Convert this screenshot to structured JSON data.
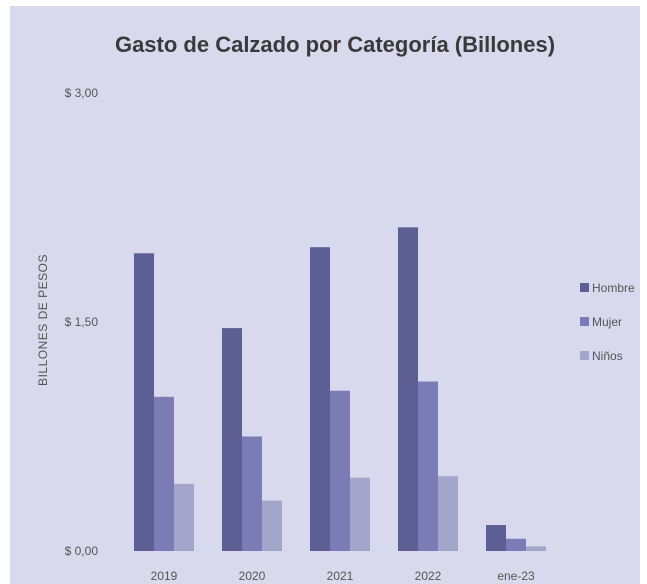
{
  "chart_data": {
    "type": "bar",
    "title": "Gasto de Calzado por Categoría (Billones)",
    "xlabel": "",
    "ylabel": "BILLONES DE PESOS",
    "categories": [
      "2019",
      "2020",
      "2021",
      "2022",
      "ene-23"
    ],
    "series": [
      {
        "name": "Hombre",
        "color": "#5d5e94",
        "values": [
          1.95,
          1.46,
          1.99,
          2.12,
          0.17
        ]
      },
      {
        "name": "Mujer",
        "color": "#7b7cb5",
        "values": [
          1.01,
          0.75,
          1.05,
          1.11,
          0.08
        ]
      },
      {
        "name": "Niños",
        "color": "#a4a5cb",
        "values": [
          0.44,
          0.33,
          0.48,
          0.49,
          0.03
        ]
      }
    ],
    "yticks": [
      {
        "value": 0,
        "label": "$ 0,00"
      },
      {
        "value": 1.5,
        "label": "$ 1,50"
      },
      {
        "value": 3,
        "label": "$ 3,00"
      }
    ],
    "ylim": [
      0,
      3
    ],
    "grid": false,
    "legend_position": "right"
  }
}
